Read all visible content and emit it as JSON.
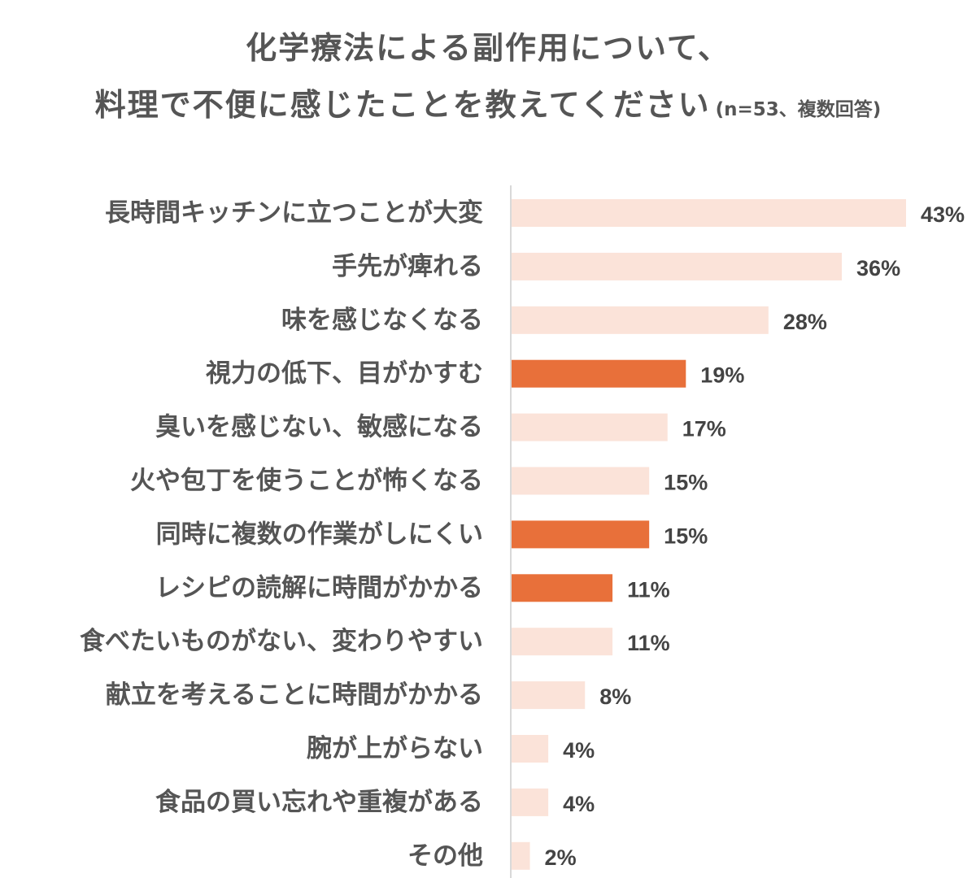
{
  "title": {
    "line1": "化学療法による副作用について、",
    "line2": "料理で不便に感じたことを教えてください",
    "note": "(n=53、複数回答)"
  },
  "colors": {
    "highlight": "#e8703a",
    "normal": "#fbe3d9",
    "axis": "#d9d9d9",
    "text": "#555555"
  },
  "chart_data": {
    "type": "bar",
    "orientation": "horizontal",
    "categories": [
      "長時間キッチンに立つことが大変",
      "手先が痺れる",
      "味を感じなくなる",
      "視力の低下、目がかすむ",
      "臭いを感じない、敏感になる",
      "火や包丁を使うことが怖くなる",
      "同時に複数の作業がしにくい",
      "レシピの読解に時間がかかる",
      "食べたいものがない、変わりやすい",
      "献立を考えることに時間がかかる",
      "腕が上がらない",
      "食品の買い忘れや重複がある",
      "その他"
    ],
    "values": [
      43,
      36,
      28,
      19,
      17,
      15,
      15,
      11,
      11,
      8,
      4,
      4,
      2
    ],
    "value_labels": [
      "43%",
      "36%",
      "28%",
      "19%",
      "17%",
      "15%",
      "15%",
      "11%",
      "11%",
      "8%",
      "4%",
      "4%",
      "2%"
    ],
    "highlighted": [
      false,
      false,
      false,
      true,
      false,
      false,
      true,
      true,
      false,
      false,
      false,
      false,
      false
    ],
    "xlim": [
      0,
      43
    ],
    "grid": false,
    "legend": "none"
  }
}
